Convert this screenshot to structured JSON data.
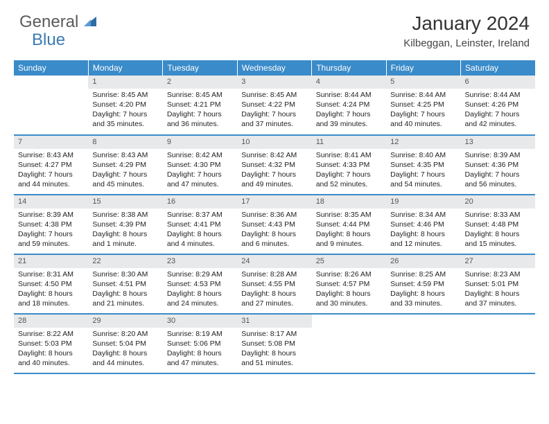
{
  "logo": {
    "part1": "General",
    "part2": "Blue"
  },
  "title": "January 2024",
  "location": "Kilbeggan, Leinster, Ireland",
  "colors": {
    "header_bg": "#3a8bc9",
    "header_text": "#ffffff",
    "daynum_bg": "#e8e9ea",
    "row_border": "#3a8bc9",
    "logo_gray": "#5a5a5a",
    "logo_blue": "#3a7ab5"
  },
  "weekdays": [
    "Sunday",
    "Monday",
    "Tuesday",
    "Wednesday",
    "Thursday",
    "Friday",
    "Saturday"
  ],
  "weeks": [
    [
      null,
      {
        "n": "1",
        "sr": "8:45 AM",
        "ss": "4:20 PM",
        "dl": "7 hours and 35 minutes."
      },
      {
        "n": "2",
        "sr": "8:45 AM",
        "ss": "4:21 PM",
        "dl": "7 hours and 36 minutes."
      },
      {
        "n": "3",
        "sr": "8:45 AM",
        "ss": "4:22 PM",
        "dl": "7 hours and 37 minutes."
      },
      {
        "n": "4",
        "sr": "8:44 AM",
        "ss": "4:24 PM",
        "dl": "7 hours and 39 minutes."
      },
      {
        "n": "5",
        "sr": "8:44 AM",
        "ss": "4:25 PM",
        "dl": "7 hours and 40 minutes."
      },
      {
        "n": "6",
        "sr": "8:44 AM",
        "ss": "4:26 PM",
        "dl": "7 hours and 42 minutes."
      }
    ],
    [
      {
        "n": "7",
        "sr": "8:43 AM",
        "ss": "4:27 PM",
        "dl": "7 hours and 44 minutes."
      },
      {
        "n": "8",
        "sr": "8:43 AM",
        "ss": "4:29 PM",
        "dl": "7 hours and 45 minutes."
      },
      {
        "n": "9",
        "sr": "8:42 AM",
        "ss": "4:30 PM",
        "dl": "7 hours and 47 minutes."
      },
      {
        "n": "10",
        "sr": "8:42 AM",
        "ss": "4:32 PM",
        "dl": "7 hours and 49 minutes."
      },
      {
        "n": "11",
        "sr": "8:41 AM",
        "ss": "4:33 PM",
        "dl": "7 hours and 52 minutes."
      },
      {
        "n": "12",
        "sr": "8:40 AM",
        "ss": "4:35 PM",
        "dl": "7 hours and 54 minutes."
      },
      {
        "n": "13",
        "sr": "8:39 AM",
        "ss": "4:36 PM",
        "dl": "7 hours and 56 minutes."
      }
    ],
    [
      {
        "n": "14",
        "sr": "8:39 AM",
        "ss": "4:38 PM",
        "dl": "7 hours and 59 minutes."
      },
      {
        "n": "15",
        "sr": "8:38 AM",
        "ss": "4:39 PM",
        "dl": "8 hours and 1 minute."
      },
      {
        "n": "16",
        "sr": "8:37 AM",
        "ss": "4:41 PM",
        "dl": "8 hours and 4 minutes."
      },
      {
        "n": "17",
        "sr": "8:36 AM",
        "ss": "4:43 PM",
        "dl": "8 hours and 6 minutes."
      },
      {
        "n": "18",
        "sr": "8:35 AM",
        "ss": "4:44 PM",
        "dl": "8 hours and 9 minutes."
      },
      {
        "n": "19",
        "sr": "8:34 AM",
        "ss": "4:46 PM",
        "dl": "8 hours and 12 minutes."
      },
      {
        "n": "20",
        "sr": "8:33 AM",
        "ss": "4:48 PM",
        "dl": "8 hours and 15 minutes."
      }
    ],
    [
      {
        "n": "21",
        "sr": "8:31 AM",
        "ss": "4:50 PM",
        "dl": "8 hours and 18 minutes."
      },
      {
        "n": "22",
        "sr": "8:30 AM",
        "ss": "4:51 PM",
        "dl": "8 hours and 21 minutes."
      },
      {
        "n": "23",
        "sr": "8:29 AM",
        "ss": "4:53 PM",
        "dl": "8 hours and 24 minutes."
      },
      {
        "n": "24",
        "sr": "8:28 AM",
        "ss": "4:55 PM",
        "dl": "8 hours and 27 minutes."
      },
      {
        "n": "25",
        "sr": "8:26 AM",
        "ss": "4:57 PM",
        "dl": "8 hours and 30 minutes."
      },
      {
        "n": "26",
        "sr": "8:25 AM",
        "ss": "4:59 PM",
        "dl": "8 hours and 33 minutes."
      },
      {
        "n": "27",
        "sr": "8:23 AM",
        "ss": "5:01 PM",
        "dl": "8 hours and 37 minutes."
      }
    ],
    [
      {
        "n": "28",
        "sr": "8:22 AM",
        "ss": "5:03 PM",
        "dl": "8 hours and 40 minutes."
      },
      {
        "n": "29",
        "sr": "8:20 AM",
        "ss": "5:04 PM",
        "dl": "8 hours and 44 minutes."
      },
      {
        "n": "30",
        "sr": "8:19 AM",
        "ss": "5:06 PM",
        "dl": "8 hours and 47 minutes."
      },
      {
        "n": "31",
        "sr": "8:17 AM",
        "ss": "5:08 PM",
        "dl": "8 hours and 51 minutes."
      },
      null,
      null,
      null
    ]
  ],
  "labels": {
    "sunrise": "Sunrise:",
    "sunset": "Sunset:",
    "daylight": "Daylight:"
  }
}
